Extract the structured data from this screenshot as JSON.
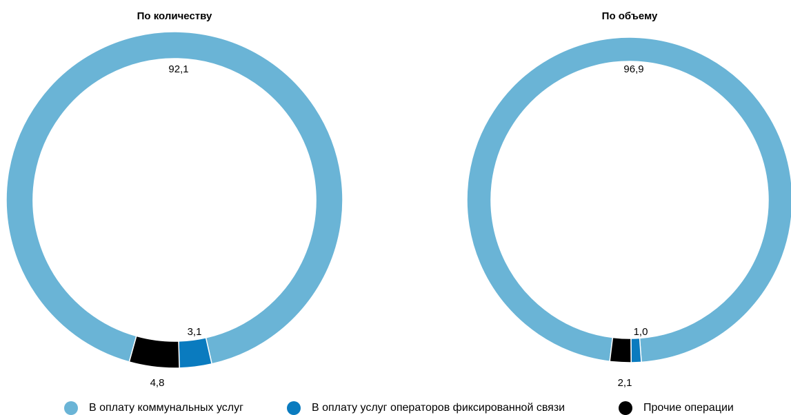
{
  "chart_data": [
    {
      "type": "pie",
      "style": "donut",
      "title": "По количеству",
      "categories": [
        "В оплату коммунальных услуг",
        "В оплату услуг операторов фиксированной связи",
        "Прочие операции"
      ],
      "values": [
        92.1,
        3.1,
        4.8
      ],
      "value_labels": [
        "92,1",
        "3,1",
        "4,8"
      ]
    },
    {
      "type": "pie",
      "style": "donut",
      "title": "По объему",
      "categories": [
        "В оплату коммунальных услуг",
        "В оплату услуг операторов фиксированной связи",
        "Прочие операции"
      ],
      "values": [
        96.9,
        1.0,
        2.1
      ],
      "value_labels": [
        "96,9",
        "1,0",
        "2,1"
      ]
    }
  ],
  "legend": [
    {
      "label": "В оплату коммунальных услуг",
      "color": "#6ab4d6"
    },
    {
      "label": "В оплату услуг операторов фиксированной связи",
      "color": "#0a7bbf"
    },
    {
      "label": "Прочие операции",
      "color": "#000000"
    }
  ],
  "colors": [
    "#6ab4d6",
    "#0a7bbf",
    "#000000"
  ]
}
